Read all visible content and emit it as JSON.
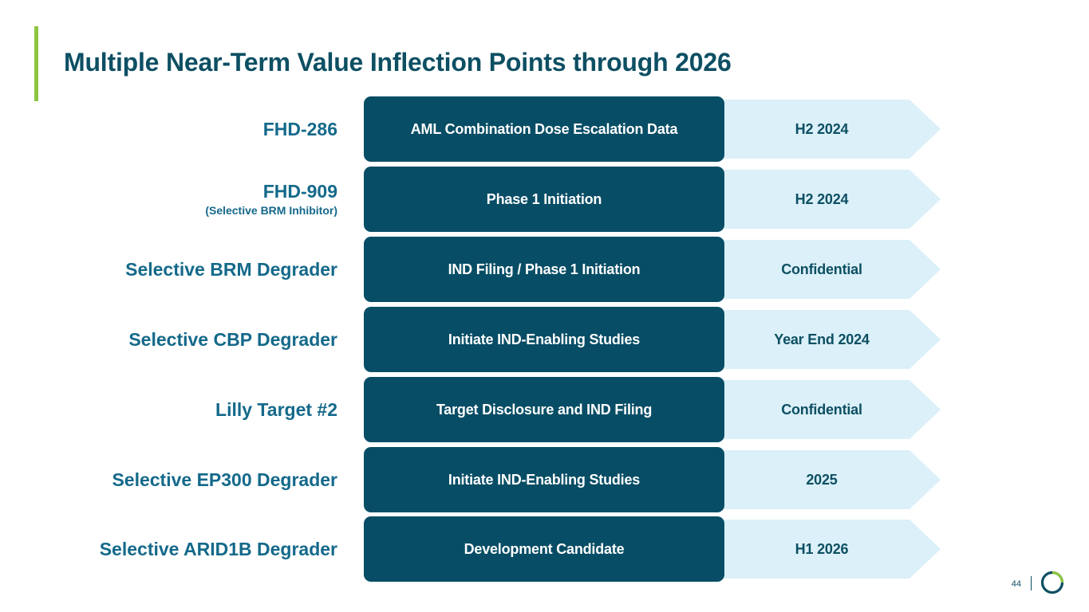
{
  "slide": {
    "title": "Multiple Near-Term Value Inflection Points through 2026",
    "page_number": "44"
  },
  "programs": [
    {
      "name": "FHD-286",
      "subtitle": "",
      "milestone": "AML Combination Dose Escalation Data",
      "timing": "H2 2024"
    },
    {
      "name": "FHD-909",
      "subtitle": "(Selective BRM Inhibitor)",
      "milestone": "Phase 1 Initiation",
      "timing": "H2 2024"
    },
    {
      "name": "Selective BRM Degrader",
      "subtitle": "",
      "milestone": "IND Filing / Phase 1 Initiation",
      "timing": "Confidential"
    },
    {
      "name": "Selective CBP Degrader",
      "subtitle": "",
      "milestone": "Initiate IND-Enabling Studies",
      "timing": "Year End 2024"
    },
    {
      "name": "Lilly Target #2",
      "subtitle": "",
      "milestone": "Target Disclosure and IND Filing",
      "timing": "Confidential"
    },
    {
      "name": "Selective EP300 Degrader",
      "subtitle": "",
      "milestone": "Initiate IND-Enabling Studies",
      "timing": "2025"
    },
    {
      "name": "Selective ARID1B Degrader",
      "subtitle": "",
      "milestone": "Development Candidate",
      "timing": "H1 2026"
    }
  ],
  "colors": {
    "title": "#0d4f63",
    "program_label": "#14698a",
    "milestone_box": "#074d65",
    "timing_arrow": "#dbf0f8",
    "accent": "#8dc63f",
    "logo_green": "#8dc63f"
  },
  "icons": {
    "logo": "company-logo-ring"
  }
}
